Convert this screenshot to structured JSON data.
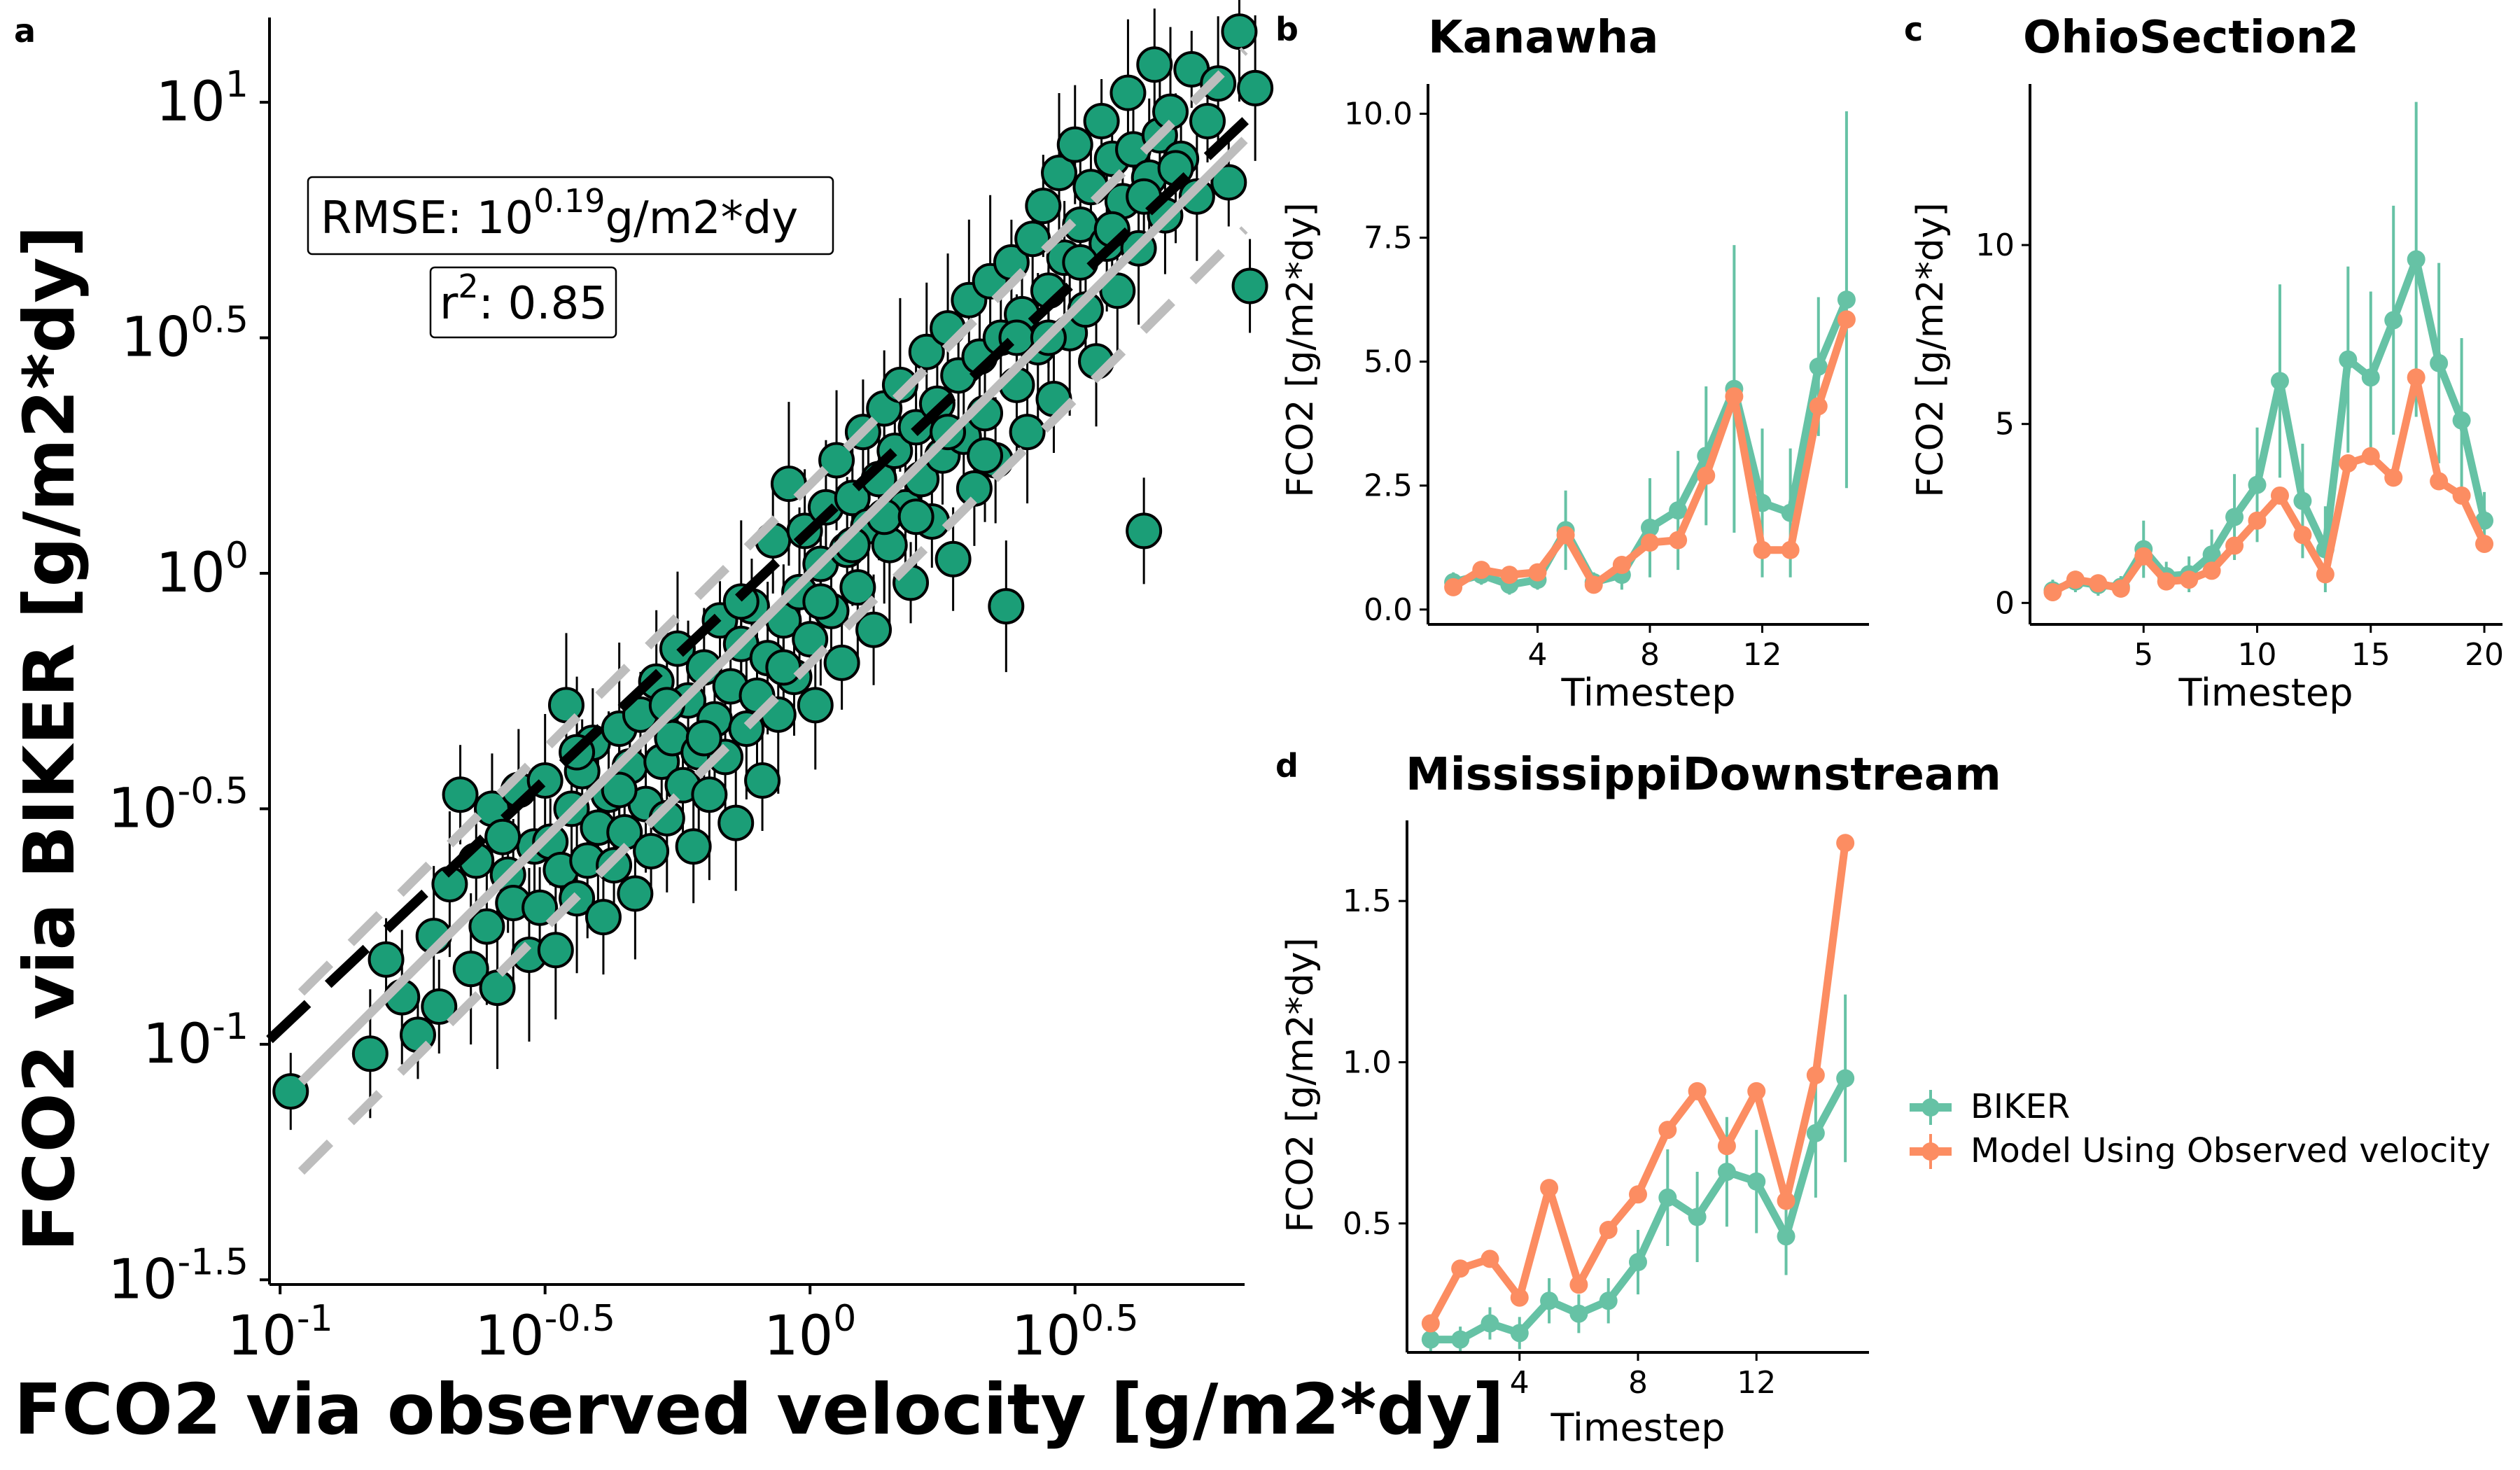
{
  "panels": {
    "a": {
      "letter": "a",
      "xlabel": "FCO2 via observed velocity [g/m2*dy]",
      "ylabel": "FCO2 via BIKER [g/m2*dy]",
      "x_ticks": [
        {
          "base": "10",
          "exp": "-1",
          "log10": -1
        },
        {
          "base": "10",
          "exp": "-0.5",
          "log10": -0.5
        },
        {
          "base": "10",
          "exp": "0",
          "log10": 0
        },
        {
          "base": "10",
          "exp": "0.5",
          "log10": 0.5
        }
      ],
      "y_ticks": [
        {
          "base": "10",
          "exp": "-1.5",
          "log10": -1.5
        },
        {
          "base": "10",
          "exp": "-1",
          "log10": -1
        },
        {
          "base": "10",
          "exp": "-0.5",
          "log10": -0.5
        },
        {
          "base": "10",
          "exp": "0",
          "log10": 0
        },
        {
          "base": "10",
          "exp": "0.5",
          "log10": 0.5
        },
        {
          "base": "10",
          "exp": "1",
          "log10": 1
        }
      ],
      "rmse_prefix": "RMSE: 10",
      "rmse_exp": "0.19",
      "rmse_suffix": "g/m2*dy",
      "r2_prefix": "r",
      "r2_exp": "2",
      "r2_suffix": ": 0.85"
    },
    "b": {
      "letter": "b",
      "title": "Kanawha",
      "xlabel": "Timestep",
      "ylabel": "FCO2 [g/m2*dy]",
      "x_ticks": [
        "4",
        "8",
        "12"
      ],
      "y_ticks": [
        "0.0",
        "2.5",
        "5.0",
        "7.5",
        "10.0"
      ]
    },
    "c": {
      "letter": "c",
      "title": "OhioSection2",
      "xlabel": "Timestep",
      "ylabel": "FCO2 [g/m2*dy]",
      "x_ticks": [
        "5",
        "10",
        "15",
        "20"
      ],
      "y_ticks": [
        "0",
        "5",
        "10"
      ]
    },
    "d": {
      "letter": "d",
      "title": "MississippiDownstream",
      "xlabel": "Timestep",
      "ylabel": "FCO2 [g/m2*dy]",
      "x_ticks": [
        "4",
        "8",
        "12"
      ],
      "y_ticks": [
        "0.5",
        "1.0",
        "1.5"
      ]
    }
  },
  "legend": [
    "BIKER",
    "Model Using Observed velocity"
  ],
  "colors": {
    "points": "#1b9e77",
    "biker": "#66c2a5",
    "model": "#fc8d62",
    "ref_lines": "#bdbdbd",
    "fit_line": "#000000"
  },
  "chart_data": [
    {
      "type": "scatter",
      "panel": "a",
      "xlabel": "FCO2 via observed velocity [g/m2*dy]",
      "ylabel": "FCO2 via BIKER [g/m2*dy]",
      "x_scale": "log",
      "y_scale": "log",
      "xlim_log10": [
        -1.02,
        0.82
      ],
      "ylim_log10": [
        -1.51,
        1.18
      ],
      "points_log10": [
        [
          -0.98,
          -1.1
        ],
        [
          -0.83,
          -1.02
        ],
        [
          -0.8,
          -0.82
        ],
        [
          -0.77,
          -0.9
        ],
        [
          -0.74,
          -0.98
        ],
        [
          -0.71,
          -0.77
        ],
        [
          -0.7,
          -0.92
        ],
        [
          -0.68,
          -0.66
        ],
        [
          -0.66,
          -0.47
        ],
        [
          -0.64,
          -0.84
        ],
        [
          -0.63,
          -0.61
        ],
        [
          -0.61,
          -0.75
        ],
        [
          -0.6,
          -0.5
        ],
        [
          -0.59,
          -0.88
        ],
        [
          -0.57,
          -0.64
        ],
        [
          -0.56,
          -0.7
        ],
        [
          -0.55,
          -0.46
        ],
        [
          -0.53,
          -0.81
        ],
        [
          -0.52,
          -0.58
        ],
        [
          -0.51,
          -0.71
        ],
        [
          -0.5,
          -0.44
        ],
        [
          -0.49,
          -0.57
        ],
        [
          -0.48,
          -0.8
        ],
        [
          -0.47,
          -0.63
        ],
        [
          -0.46,
          -0.28
        ],
        [
          -0.45,
          -0.5
        ],
        [
          -0.44,
          -0.69
        ],
        [
          -0.43,
          -0.42
        ],
        [
          -0.42,
          -0.61
        ],
        [
          -0.41,
          -0.36
        ],
        [
          -0.4,
          -0.54
        ],
        [
          -0.39,
          -0.73
        ],
        [
          -0.38,
          -0.47
        ],
        [
          -0.37,
          -0.62
        ],
        [
          -0.36,
          -0.33
        ],
        [
          -0.35,
          -0.55
        ],
        [
          -0.34,
          -0.41
        ],
        [
          -0.33,
          -0.68
        ],
        [
          -0.32,
          -0.3
        ],
        [
          -0.31,
          -0.49
        ],
        [
          -0.3,
          -0.59
        ],
        [
          -0.29,
          -0.23
        ],
        [
          -0.28,
          -0.4
        ],
        [
          -0.27,
          -0.52
        ],
        [
          -0.26,
          -0.35
        ],
        [
          -0.25,
          -0.16
        ],
        [
          -0.24,
          -0.45
        ],
        [
          -0.23,
          -0.27
        ],
        [
          -0.22,
          -0.58
        ],
        [
          -0.21,
          -0.38
        ],
        [
          -0.2,
          -0.2
        ],
        [
          -0.19,
          -0.47
        ],
        [
          -0.18,
          -0.31
        ],
        [
          -0.17,
          -0.1
        ],
        [
          -0.16,
          -0.39
        ],
        [
          -0.15,
          -0.24
        ],
        [
          -0.14,
          -0.53
        ],
        [
          -0.13,
          -0.15
        ],
        [
          -0.12,
          -0.33
        ],
        [
          -0.11,
          -0.07
        ],
        [
          -0.1,
          -0.26
        ],
        [
          -0.09,
          -0.44
        ],
        [
          -0.08,
          -0.18
        ],
        [
          -0.07,
          0.07
        ],
        [
          -0.06,
          -0.3
        ],
        [
          -0.05,
          -0.1
        ],
        [
          -0.04,
          0.19
        ],
        [
          -0.03,
          -0.22
        ],
        [
          -0.02,
          -0.04
        ],
        [
          -0.01,
          0.09
        ],
        [
          0,
          -0.14
        ],
        [
          0.01,
          -0.28
        ],
        [
          0.02,
          0.02
        ],
        [
          0.03,
          0.14
        ],
        [
          0.04,
          -0.08
        ],
        [
          0.05,
          0.24
        ],
        [
          0.06,
          -0.19
        ],
        [
          0.07,
          0.05
        ],
        [
          0.08,
          0.16
        ],
        [
          0.09,
          -0.03
        ],
        [
          0.1,
          0.3
        ],
        [
          0.11,
          0.1
        ],
        [
          0.12,
          -0.12
        ],
        [
          0.13,
          0.2
        ],
        [
          0.14,
          0.35
        ],
        [
          0.15,
          0.06
        ],
        [
          0.16,
          0.26
        ],
        [
          0.17,
          0.4
        ],
        [
          0.18,
          0.14
        ],
        [
          0.19,
          -0.02
        ],
        [
          0.2,
          0.31
        ],
        [
          0.21,
          0.2
        ],
        [
          0.22,
          0.47
        ],
        [
          0.23,
          0.11
        ],
        [
          0.24,
          0.36
        ],
        [
          0.25,
          0.25
        ],
        [
          0.26,
          0.52
        ],
        [
          0.27,
          0.03
        ],
        [
          0.28,
          0.42
        ],
        [
          0.29,
          0.29
        ],
        [
          0.3,
          0.58
        ],
        [
          0.31,
          0.18
        ],
        [
          0.32,
          0.46
        ],
        [
          0.33,
          0.34
        ],
        [
          0.34,
          0.62
        ],
        [
          0.35,
          0.24
        ],
        [
          0.36,
          0.5
        ],
        [
          0.37,
          -0.07
        ],
        [
          0.38,
          0.66
        ],
        [
          0.39,
          0.4
        ],
        [
          0.4,
          0.55
        ],
        [
          0.41,
          0.3
        ],
        [
          0.42,
          0.71
        ],
        [
          0.43,
          0.48
        ],
        [
          0.44,
          0.78
        ],
        [
          0.45,
          0.6
        ],
        [
          0.46,
          0.37
        ],
        [
          0.47,
          0.85
        ],
        [
          0.48,
          0.67
        ],
        [
          0.49,
          0.51
        ],
        [
          0.5,
          0.91
        ],
        [
          0.51,
          0.74
        ],
        [
          0.52,
          0.56
        ],
        [
          0.53,
          0.82
        ],
        [
          0.54,
          0.45
        ],
        [
          0.55,
          0.96
        ],
        [
          0.56,
          0.7
        ],
        [
          0.57,
          0.88
        ],
        [
          0.58,
          0.6
        ],
        [
          0.59,
          0.79
        ],
        [
          0.6,
          1.02
        ],
        [
          0.61,
          0.9
        ],
        [
          0.62,
          0.69
        ],
        [
          0.63,
          0.09
        ],
        [
          0.64,
          0.84
        ],
        [
          0.65,
          1.08
        ],
        [
          0.66,
          0.93
        ],
        [
          0.67,
          0.76
        ],
        [
          0.68,
          0.98
        ],
        [
          0.7,
          0.88
        ],
        [
          0.72,
          1.07
        ],
        [
          0.73,
          0.8
        ],
        [
          0.75,
          0.96
        ],
        [
          0.77,
          1.04
        ],
        [
          0.79,
          0.83
        ],
        [
          0.81,
          1.15
        ],
        [
          0.83,
          0.61
        ],
        [
          0.84,
          1.03
        ],
        [
          -0.58,
          -0.56
        ],
        [
          -0.44,
          -0.38
        ],
        [
          -0.36,
          -0.46
        ],
        [
          -0.27,
          -0.28
        ],
        [
          -0.2,
          -0.35
        ],
        [
          -0.13,
          -0.06
        ],
        [
          -0.05,
          -0.2
        ],
        [
          0.02,
          -0.06
        ],
        [
          0.08,
          0.06
        ],
        [
          0.14,
          0.12
        ],
        [
          0.2,
          0.12
        ],
        [
          0.26,
          0.3
        ],
        [
          0.33,
          0.25
        ],
        [
          0.39,
          0.5
        ],
        [
          0.45,
          0.5
        ],
        [
          0.51,
          0.66
        ],
        [
          0.57,
          0.73
        ],
        [
          0.63,
          0.8
        ],
        [
          0.69,
          0.86
        ]
      ],
      "fit_line_log10": [
        [
          -1.02,
          -0.99
        ],
        [
          0.83,
          0.97
        ]
      ],
      "identity_line_log10": [
        [
          -0.96,
          -1.08
        ],
        [
          0.82,
          0.92
        ]
      ],
      "rmse_bands_log10": [
        [
          [
            -0.96,
            -0.89
          ],
          [
            0.82,
            1.11
          ]
        ],
        [
          [
            -0.96,
            -1.27
          ],
          [
            0.82,
            0.73
          ]
        ]
      ]
    },
    {
      "type": "line",
      "panel": "b",
      "title": "Kanawha",
      "xlabel": "Timestep",
      "ylabel": "FCO2 [g/m2*dy]",
      "x": [
        1,
        2,
        3,
        4,
        5,
        6,
        7,
        8,
        9,
        10,
        11,
        12,
        13,
        14,
        15
      ],
      "xlim": [
        0.1,
        15.8
      ],
      "ylim": [
        -0.3,
        10.6
      ],
      "series": [
        {
          "name": "BIKER",
          "values": [
            0.55,
            0.7,
            0.5,
            0.6,
            1.6,
            0.55,
            0.7,
            1.65,
            2.0,
            3.1,
            4.45,
            2.15,
            1.95,
            4.9,
            6.25
          ],
          "err": [
            0.2,
            0.2,
            0.2,
            0.2,
            0.8,
            0.2,
            0.3,
            1.0,
            1.2,
            1.4,
            2.9,
            1.5,
            1.3,
            1.4,
            3.8
          ]
        },
        {
          "name": "Model Using Observed velocity",
          "values": [
            0.45,
            0.8,
            0.7,
            0.75,
            1.5,
            0.5,
            0.9,
            1.35,
            1.4,
            2.7,
            4.3,
            1.2,
            1.2,
            4.1,
            5.85
          ]
        }
      ]
    },
    {
      "type": "line",
      "panel": "c",
      "title": "OhioSection2",
      "xlabel": "Timestep",
      "ylabel": "FCO2 [g/m2*dy]",
      "x": [
        1,
        2,
        3,
        4,
        5,
        6,
        7,
        8,
        9,
        10,
        11,
        12,
        13,
        14,
        15,
        16,
        17,
        18,
        19,
        20
      ],
      "xlim": [
        0,
        20.8
      ],
      "ylim": [
        -0.6,
        14.5
      ],
      "series": [
        {
          "name": "BIKER",
          "values": [
            0.35,
            0.6,
            0.5,
            0.45,
            1.5,
            0.75,
            0.8,
            1.35,
            2.4,
            3.3,
            6.2,
            2.85,
            1.5,
            6.8,
            6.3,
            7.9,
            9.6,
            6.7,
            5.1,
            2.3
          ],
          "err": [
            0.3,
            0.3,
            0.3,
            0.3,
            0.8,
            0.4,
            0.5,
            0.7,
            1.2,
            1.6,
            2.7,
            1.6,
            1.2,
            2.6,
            2.4,
            3.2,
            4.4,
            2.8,
            2.3,
            0.8
          ]
        },
        {
          "name": "Model Using Observed velocity",
          "values": [
            0.3,
            0.65,
            0.55,
            0.4,
            1.3,
            0.6,
            0.65,
            0.9,
            1.6,
            2.3,
            3.0,
            1.9,
            0.8,
            3.9,
            4.1,
            3.5,
            6.3,
            3.4,
            3.0,
            1.65
          ]
        }
      ]
    },
    {
      "type": "line",
      "panel": "d",
      "title": "MississippiDownstream",
      "xlabel": "Timestep",
      "ylabel": "FCO2 [g/m2*dy]",
      "x": [
        1,
        2,
        3,
        4,
        5,
        6,
        7,
        8,
        9,
        10,
        11,
        12,
        13,
        14,
        15
      ],
      "xlim": [
        0.2,
        15.8
      ],
      "ylim": [
        0.1,
        1.75
      ],
      "series": [
        {
          "name": "BIKER",
          "values": [
            0.14,
            0.14,
            0.19,
            0.16,
            0.26,
            0.22,
            0.26,
            0.38,
            0.58,
            0.52,
            0.66,
            0.63,
            0.46,
            0.78,
            0.95
          ],
          "err": [
            0.04,
            0.04,
            0.05,
            0.05,
            0.07,
            0.06,
            0.07,
            0.1,
            0.15,
            0.14,
            0.17,
            0.16,
            0.12,
            0.2,
            0.26
          ]
        },
        {
          "name": "Model Using Observed velocity",
          "values": [
            0.19,
            0.36,
            0.39,
            0.27,
            0.61,
            0.31,
            0.48,
            0.59,
            0.79,
            0.91,
            0.74,
            0.91,
            0.57,
            0.96,
            1.68
          ]
        }
      ]
    }
  ]
}
